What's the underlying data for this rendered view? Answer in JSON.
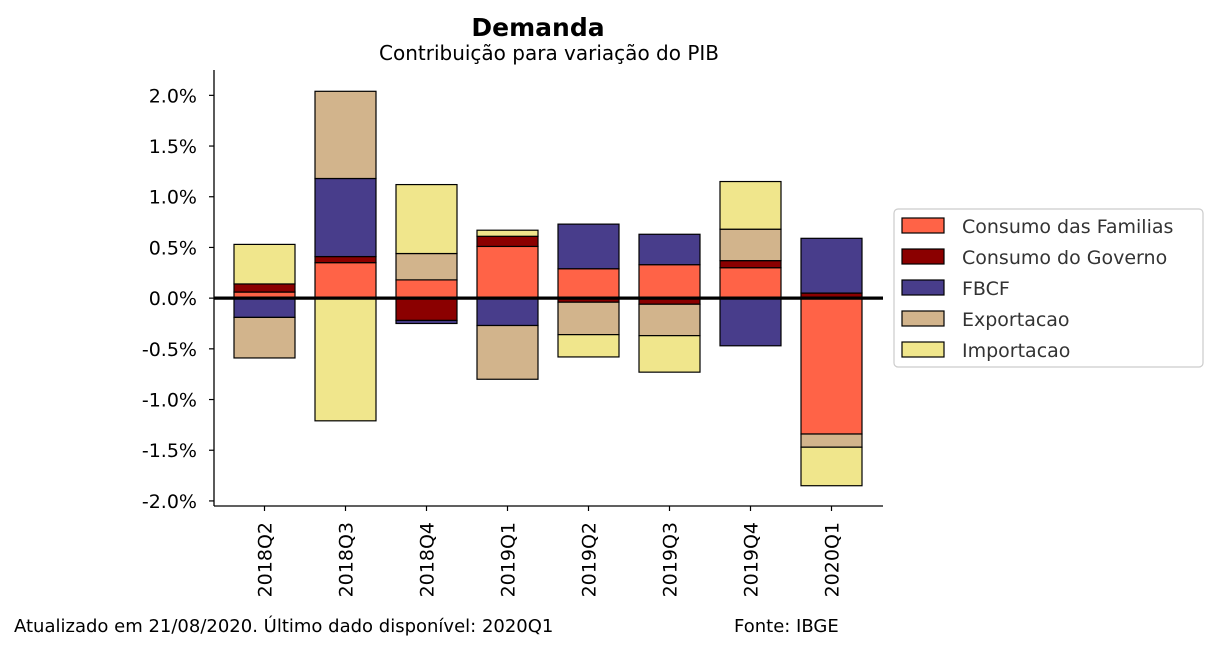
{
  "chart_data": {
    "type": "bar",
    "stacked": true,
    "title": "Demanda",
    "subtitle": "Contribuição para variação do PIB",
    "xlabel": "",
    "ylabel": "",
    "categories": [
      "2018Q2",
      "2018Q3",
      "2018Q4",
      "2019Q1",
      "2019Q2",
      "2019Q3",
      "2019Q4",
      "2020Q1"
    ],
    "ylim": [
      -2.05,
      2.25
    ],
    "yticks": [
      2.0,
      1.5,
      1.0,
      0.5,
      0.0,
      -0.5,
      -1.0,
      -1.5,
      -2.0
    ],
    "ytick_labels": [
      "2.0%",
      "1.5%",
      "1.0%",
      "0.5%",
      "0.0%",
      "-0.5%",
      "-1.0%",
      "-1.5%",
      "-2.0%"
    ],
    "legend_position": "right",
    "series": [
      {
        "name": "Consumo das Familias",
        "color": "#ff6347",
        "values": [
          0.06,
          0.35,
          0.18,
          0.51,
          0.29,
          0.33,
          0.3,
          -1.34
        ]
      },
      {
        "name": "Consumo do Governo",
        "color": "#8b0000",
        "values": [
          0.08,
          0.06,
          -0.22,
          0.1,
          -0.04,
          -0.06,
          0.07,
          0.05
        ]
      },
      {
        "name": "FBCF",
        "color": "#483d8b",
        "values": [
          -0.19,
          0.77,
          -0.03,
          -0.27,
          0.44,
          0.3,
          -0.47,
          0.54
        ]
      },
      {
        "name": "Exportacao",
        "color": "#d2b48c",
        "values": [
          -0.4,
          0.86,
          0.26,
          -0.53,
          -0.32,
          -0.31,
          0.31,
          -0.13
        ]
      },
      {
        "name": "Importacao",
        "color": "#f0e68c",
        "values": [
          0.39,
          -1.21,
          0.68,
          0.06,
          -0.22,
          -0.36,
          0.47,
          -0.38
        ]
      }
    ]
  },
  "footer": {
    "updated": "Atualizado em 21/08/2020. Último dado disponível: 2020Q1",
    "source": "Fonte: IBGE"
  }
}
